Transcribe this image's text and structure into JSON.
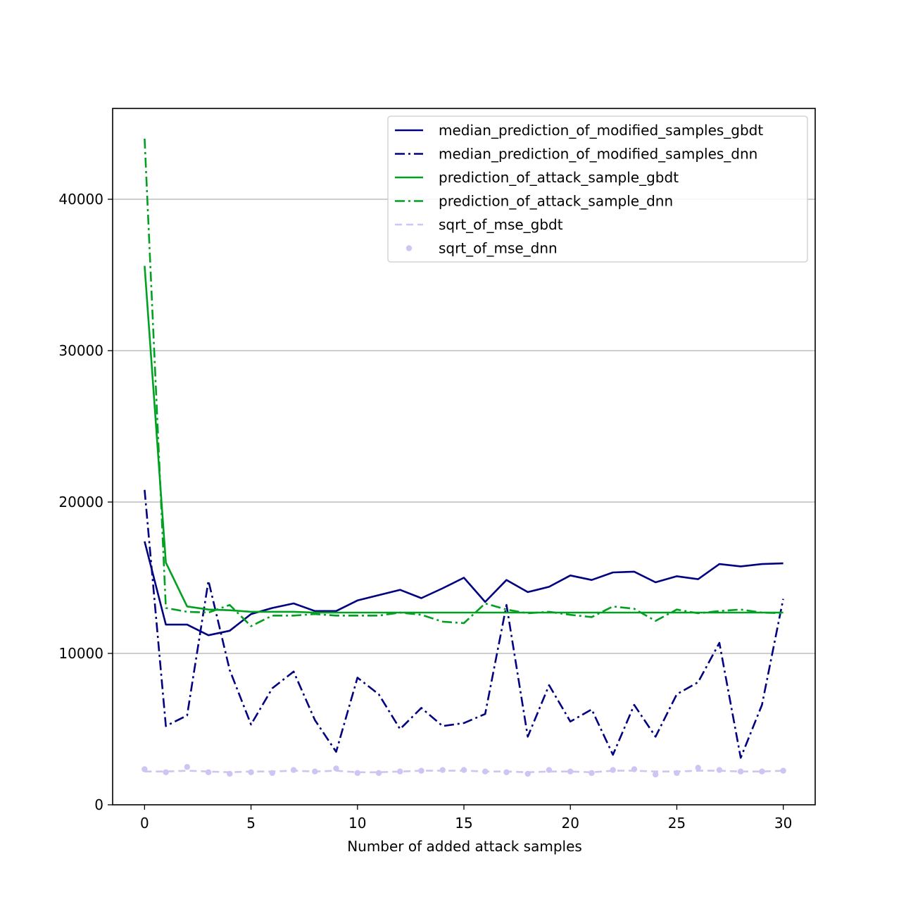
{
  "chart_data": {
    "type": "line",
    "title": "",
    "xlabel": "Number of added attack samples",
    "ylabel": "",
    "xlim": [
      -1.5,
      31.5
    ],
    "ylim": [
      0,
      46000
    ],
    "x_ticks": [
      0,
      5,
      10,
      15,
      20,
      25,
      30
    ],
    "y_ticks": [
      0,
      10000,
      20000,
      30000,
      40000
    ],
    "grid": "y",
    "legend_position": "top-right",
    "x": [
      0,
      1,
      2,
      3,
      4,
      5,
      6,
      7,
      8,
      9,
      10,
      11,
      12,
      13,
      14,
      15,
      16,
      17,
      18,
      19,
      20,
      21,
      22,
      23,
      24,
      25,
      26,
      27,
      28,
      29,
      30
    ],
    "series": [
      {
        "name": "median_prediction_of_modified_samples_gbdt",
        "color": "#000080",
        "style": "solid",
        "values": [
          17400,
          11900,
          11900,
          11200,
          11500,
          12600,
          13000,
          13300,
          12800,
          12800,
          13500,
          13850,
          14200,
          13650,
          14300,
          15000,
          13400,
          14850,
          14050,
          14400,
          15150,
          14850,
          15350,
          15400,
          14700,
          15100,
          14900,
          15900,
          15750,
          15900,
          15950
        ]
      },
      {
        "name": "median_prediction_of_modified_samples_dnn",
        "color": "#000080",
        "style": "dashdot",
        "values": [
          20800,
          5200,
          5900,
          14800,
          8900,
          5300,
          7700,
          8800,
          5600,
          3500,
          8400,
          7300,
          5000,
          6400,
          5200,
          5400,
          6000,
          13200,
          4500,
          7900,
          5500,
          6300,
          3300,
          6600,
          4500,
          7300,
          8100,
          10700,
          3100,
          6600,
          13600
        ]
      },
      {
        "name": "prediction_of_attack_sample_gbdt",
        "color": "#00a020",
        "style": "solid",
        "values": [
          35600,
          16000,
          13100,
          12900,
          12850,
          12750,
          12750,
          12750,
          12700,
          12700,
          12700,
          12700,
          12700,
          12700,
          12700,
          12700,
          12700,
          12700,
          12700,
          12700,
          12700,
          12700,
          12700,
          12700,
          12700,
          12700,
          12700,
          12700,
          12700,
          12700,
          12700
        ]
      },
      {
        "name": "prediction_of_attack_sample_dnn",
        "color": "#00a020",
        "style": "dashdot",
        "values": [
          44000,
          13000,
          12750,
          12700,
          13200,
          11800,
          12500,
          12500,
          12600,
          12500,
          12500,
          12500,
          12700,
          12550,
          12100,
          12000,
          13300,
          12900,
          12650,
          12750,
          12550,
          12400,
          13100,
          12950,
          12150,
          12900,
          12650,
          12800,
          12900,
          12700,
          12650
        ]
      },
      {
        "name": "sqrt_of_mse_gbdt",
        "color": "#cfc4f2",
        "style": "dashed",
        "values": [
          2200,
          2200,
          2250,
          2200,
          2150,
          2200,
          2200,
          2250,
          2200,
          2250,
          2150,
          2150,
          2200,
          2250,
          2250,
          2250,
          2200,
          2200,
          2150,
          2200,
          2200,
          2150,
          2250,
          2250,
          2200,
          2200,
          2250,
          2250,
          2200,
          2200,
          2250
        ]
      },
      {
        "name": "sqrt_of_mse_dnn",
        "color": "#cfc4f2",
        "style": "dots",
        "values": [
          2350,
          2150,
          2500,
          2150,
          2050,
          2150,
          2100,
          2300,
          2200,
          2400,
          2100,
          2100,
          2200,
          2250,
          2300,
          2300,
          2200,
          2150,
          2050,
          2300,
          2200,
          2100,
          2300,
          2350,
          2000,
          2100,
          2450,
          2300,
          2200,
          2200,
          2250
        ]
      }
    ]
  }
}
